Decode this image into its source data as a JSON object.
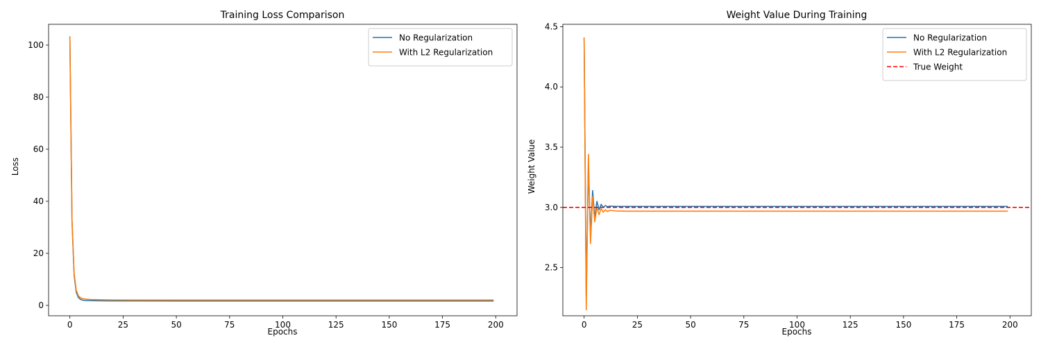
{
  "colors": {
    "no_reg": "#1f77b4",
    "l2": "#ff7f0e",
    "true_weight": "#ff0000"
  },
  "chart_data": [
    {
      "type": "line",
      "title": "Training Loss Comparison",
      "xlabel": "Epochs",
      "ylabel": "Loss",
      "xlim": [
        -10,
        210
      ],
      "ylim": [
        -4,
        108
      ],
      "xticks": [
        0,
        25,
        50,
        75,
        100,
        125,
        150,
        175,
        200
      ],
      "yticks": [
        0,
        20,
        40,
        60,
        80,
        100
      ],
      "grid": false,
      "legend_position": "top-right",
      "series": [
        {
          "name": "No Regularization",
          "color": "#1f77b4",
          "style": "solid",
          "points": [
            [
              0,
              103.2
            ],
            [
              1,
              32.5
            ],
            [
              2,
              11.5
            ],
            [
              3,
              5.0
            ],
            [
              4,
              3.0
            ],
            [
              5,
              2.3
            ],
            [
              6,
              2.0
            ],
            [
              7,
              1.9
            ],
            [
              8,
              1.85
            ],
            [
              10,
              1.8
            ],
            [
              15,
              1.75
            ],
            [
              20,
              1.72
            ],
            [
              30,
              1.7
            ],
            [
              50,
              1.69
            ],
            [
              100,
              1.69
            ],
            [
              150,
              1.69
            ],
            [
              199,
              1.69
            ]
          ]
        },
        {
          "name": "With L2 Regularization",
          "color": "#ff7f0e",
          "style": "solid",
          "points": [
            [
              0,
              103.4
            ],
            [
              1,
              33.0
            ],
            [
              2,
              12.3
            ],
            [
              3,
              5.8
            ],
            [
              4,
              3.7
            ],
            [
              5,
              2.9
            ],
            [
              6,
              2.6
            ],
            [
              7,
              2.45
            ],
            [
              8,
              2.35
            ],
            [
              10,
              2.25
            ],
            [
              15,
              2.15
            ],
            [
              20,
              2.1
            ],
            [
              30,
              2.05
            ],
            [
              50,
              2.05
            ],
            [
              100,
              2.05
            ],
            [
              150,
              2.05
            ],
            [
              199,
              2.05
            ]
          ]
        }
      ]
    },
    {
      "type": "line",
      "title": "Weight Value During Training",
      "xlabel": "Epochs",
      "ylabel": "Weight Value",
      "xlim": [
        -10,
        210
      ],
      "ylim": [
        2.1,
        4.52
      ],
      "xticks": [
        0,
        25,
        50,
        75,
        100,
        125,
        150,
        175,
        200
      ],
      "yticks": [
        2.5,
        3.0,
        3.5,
        4.0,
        4.5
      ],
      "ytick_labels": [
        "2.5",
        "3.0",
        "3.5",
        "4.0",
        "4.5"
      ],
      "grid": false,
      "legend_position": "top-right",
      "series": [
        {
          "name": "No Regularization",
          "color": "#1f77b4",
          "style": "solid",
          "points": [
            [
              0,
              4.41
            ],
            [
              1,
              2.26
            ],
            [
              2,
              3.35
            ],
            [
              3,
              2.78
            ],
            [
              4,
              3.14
            ],
            [
              5,
              2.91
            ],
            [
              6,
              3.05
            ],
            [
              7,
              2.98
            ],
            [
              8,
              3.025
            ],
            [
              9,
              3.0
            ],
            [
              10,
              3.015
            ],
            [
              11,
              3.005
            ],
            [
              12,
              3.01
            ],
            [
              15,
              3.008
            ],
            [
              20,
              3.008
            ],
            [
              50,
              3.008
            ],
            [
              100,
              3.008
            ],
            [
              150,
              3.008
            ],
            [
              199,
              3.008
            ]
          ]
        },
        {
          "name": "With L2 Regularization",
          "color": "#ff7f0e",
          "style": "solid",
          "points": [
            [
              0,
              4.41
            ],
            [
              1,
              2.15
            ],
            [
              2,
              3.44
            ],
            [
              3,
              2.7
            ],
            [
              4,
              3.09
            ],
            [
              5,
              2.88
            ],
            [
              6,
              3.0
            ],
            [
              7,
              2.94
            ],
            [
              8,
              2.99
            ],
            [
              9,
              2.96
            ],
            [
              10,
              2.98
            ],
            [
              11,
              2.965
            ],
            [
              12,
              2.975
            ],
            [
              15,
              2.97
            ],
            [
              20,
              2.968
            ],
            [
              50,
              2.968
            ],
            [
              100,
              2.968
            ],
            [
              150,
              2.968
            ],
            [
              199,
              2.968
            ]
          ]
        },
        {
          "name": "True Weight",
          "color": "#ff0000",
          "style": "dashed",
          "hline": 3.0
        }
      ]
    }
  ]
}
